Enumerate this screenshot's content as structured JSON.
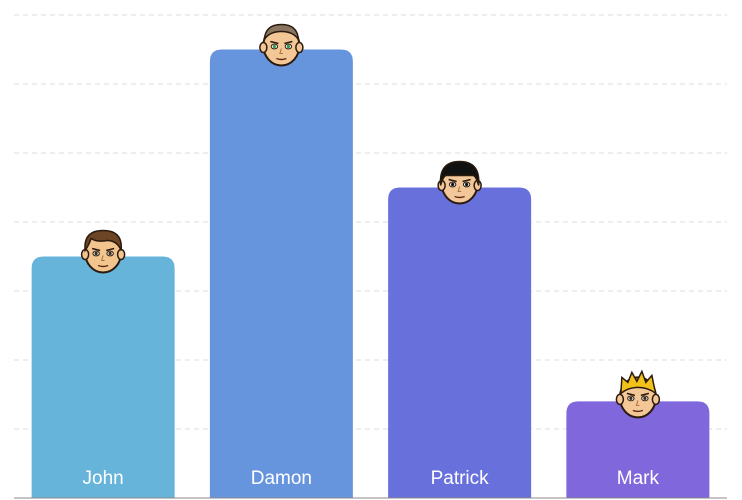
{
  "chart_data": {
    "type": "bar",
    "categories": [
      "John",
      "Damon",
      "Patrick",
      "Mark"
    ],
    "values": [
      35,
      65,
      45,
      14
    ],
    "ylim": [
      0,
      70
    ],
    "grid": true,
    "bar_colors": [
      "#67b4db",
      "#6795dd",
      "#6870dc",
      "#8167dc"
    ],
    "grid_color": "#dddddd",
    "avatar_icons": [
      "avatar-brown-hair-icon",
      "avatar-bald-green-eyes-icon",
      "avatar-black-hair-icon",
      "avatar-blond-hair-icon"
    ]
  }
}
